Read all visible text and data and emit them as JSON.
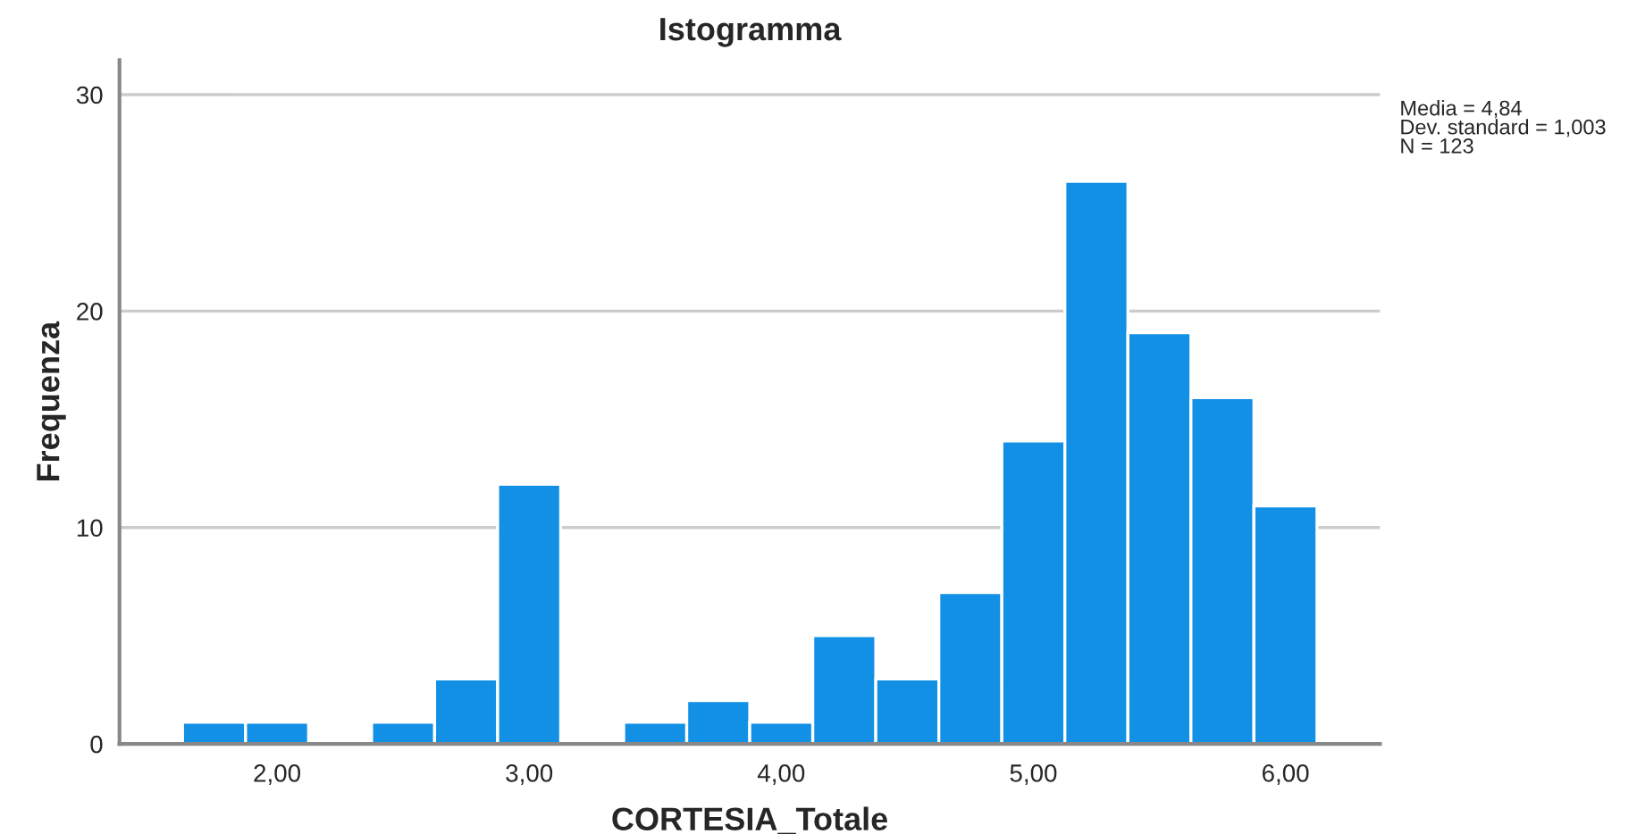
{
  "chart_data": {
    "type": "histogram",
    "title": "Istogramma",
    "xlabel": "CORTESIA_Totale",
    "ylabel": "Frequenza",
    "bins": [
      1.625,
      1.875,
      2.125,
      2.375,
      2.625,
      2.875,
      3.125,
      3.375,
      3.625,
      3.875,
      4.125,
      4.375,
      4.625,
      4.875,
      5.125,
      5.375,
      5.625,
      5.875,
      6.125
    ],
    "values": [
      1,
      1,
      0,
      1,
      3,
      12,
      0,
      1,
      2,
      1,
      5,
      3,
      7,
      14,
      26,
      19,
      16,
      11
    ],
    "color": "#1190e6",
    "xlim": [
      1.375,
      6.375
    ],
    "xticks": [
      {
        "value": 2,
        "label": "2,00"
      },
      {
        "value": 3,
        "label": "3,00"
      },
      {
        "value": 4,
        "label": "4,00"
      },
      {
        "value": 5,
        "label": "5,00"
      },
      {
        "value": 6,
        "label": "6,00"
      }
    ],
    "ylim": [
      0,
      31.6
    ],
    "yticks": [
      0,
      10,
      20,
      30
    ],
    "grid": "y",
    "annotations": [
      "Media = 4,84\nDev. standard = 1,003\nN = 123"
    ]
  }
}
